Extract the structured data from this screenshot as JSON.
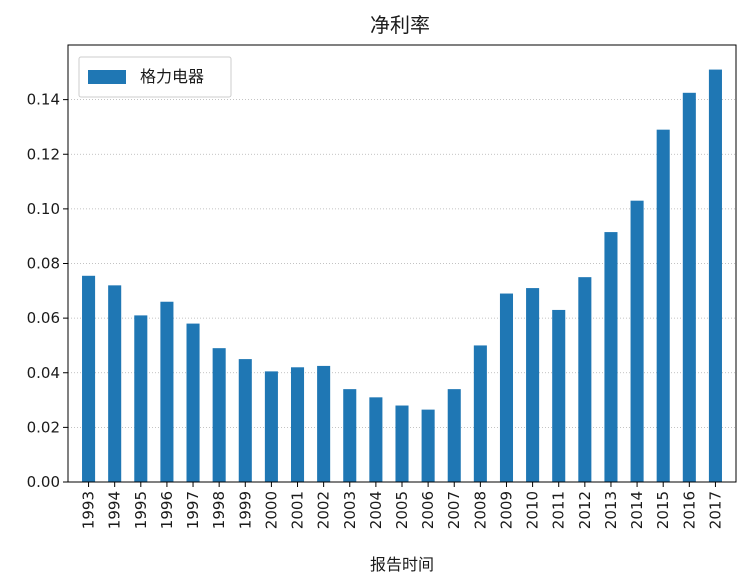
{
  "chart_data": {
    "type": "bar",
    "title": "净利率",
    "xlabel": "报告时间",
    "ylabel": "",
    "ylim": [
      0,
      0.16
    ],
    "yticks": [
      "0.00",
      "0.02",
      "0.04",
      "0.06",
      "0.08",
      "0.10",
      "0.12",
      "0.14"
    ],
    "grid": "horizontal dotted",
    "legend_position": "top-left",
    "bar_color": "#1f77b4",
    "categories": [
      "1993",
      "1994",
      "1995",
      "1996",
      "1997",
      "1998",
      "1999",
      "2000",
      "2001",
      "2002",
      "2003",
      "2004",
      "2005",
      "2006",
      "2007",
      "2008",
      "2009",
      "2010",
      "2011",
      "2012",
      "2013",
      "2014",
      "2015",
      "2016",
      "2017"
    ],
    "series": [
      {
        "name": "格力电器",
        "values": [
          0.0755,
          0.072,
          0.061,
          0.066,
          0.058,
          0.049,
          0.045,
          0.0405,
          0.042,
          0.0425,
          0.034,
          0.031,
          0.028,
          0.0265,
          0.034,
          0.05,
          0.069,
          0.071,
          0.063,
          0.075,
          0.0915,
          0.103,
          0.129,
          0.1425,
          0.151
        ]
      }
    ]
  }
}
